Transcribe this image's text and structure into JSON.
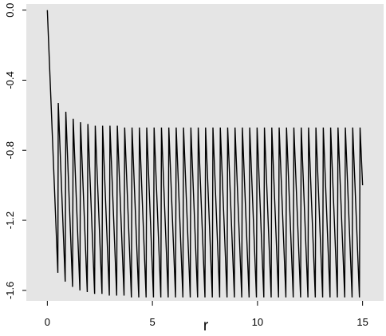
{
  "chart_data": {
    "type": "line",
    "xlabel": "r",
    "ylabel": "",
    "xlim": [
      -1.0,
      16.0
    ],
    "ylim": [
      -1.66,
      0.035
    ],
    "x_ticks": [
      0,
      5,
      10,
      15
    ],
    "x_tick_labels": [
      "0",
      "5",
      "10",
      "15"
    ],
    "y_ticks": [
      0.0,
      -0.4,
      -0.8,
      -1.2,
      -1.6
    ],
    "y_tick_labels": [
      "0.0",
      "-0.4",
      "-0.8",
      "-1.2",
      "-1.6"
    ],
    "grid": false,
    "background": "#e5e5e5",
    "line_color": "#000000",
    "series": [
      {
        "x": [
          0.0,
          0.5,
          0.52,
          0.85,
          0.88,
          1.2,
          1.23,
          1.55,
          1.58,
          1.9,
          1.93,
          2.25,
          2.28,
          2.6,
          2.63,
          2.95,
          2.98,
          3.3,
          3.33,
          3.65,
          3.68,
          4.0,
          4.03,
          4.35,
          4.38,
          4.7,
          4.73,
          5.05,
          5.08,
          5.4,
          5.43,
          5.75,
          5.78,
          6.1,
          6.13,
          6.45,
          6.48,
          6.8,
          6.83,
          7.15,
          7.18,
          7.5,
          7.53,
          7.85,
          7.88,
          8.2,
          8.23,
          8.55,
          8.58,
          8.9,
          8.93,
          9.25,
          9.28,
          9.6,
          9.63,
          9.95,
          9.98,
          10.3,
          10.33,
          10.65,
          10.68,
          11.0,
          11.03,
          11.35,
          11.38,
          11.7,
          11.73,
          12.05,
          12.08,
          12.4,
          12.43,
          12.75,
          12.78,
          13.1,
          13.13,
          13.45,
          13.48,
          13.8,
          13.83,
          14.15,
          14.18,
          14.5,
          14.53,
          14.85,
          14.88,
          15.0
        ],
        "y": [
          0.0,
          -1.5,
          -0.53,
          -1.55,
          -0.58,
          -1.58,
          -0.62,
          -1.6,
          -0.64,
          -1.61,
          -0.65,
          -1.62,
          -0.66,
          -1.62,
          -0.66,
          -1.63,
          -0.66,
          -1.63,
          -0.66,
          -1.63,
          -0.67,
          -1.64,
          -0.67,
          -1.64,
          -0.67,
          -1.64,
          -0.67,
          -1.64,
          -0.67,
          -1.64,
          -0.67,
          -1.64,
          -0.67,
          -1.64,
          -0.67,
          -1.64,
          -0.67,
          -1.64,
          -0.67,
          -1.64,
          -0.67,
          -1.64,
          -0.67,
          -1.64,
          -0.67,
          -1.64,
          -0.67,
          -1.64,
          -0.67,
          -1.64,
          -0.67,
          -1.64,
          -0.67,
          -1.64,
          -0.67,
          -1.64,
          -0.67,
          -1.64,
          -0.67,
          -1.64,
          -0.67,
          -1.64,
          -0.67,
          -1.64,
          -0.67,
          -1.64,
          -0.67,
          -1.64,
          -0.67,
          -1.64,
          -0.67,
          -1.64,
          -0.67,
          -1.64,
          -0.67,
          -1.64,
          -0.67,
          -1.64,
          -0.67,
          -1.64,
          -0.67,
          -1.64,
          -0.67,
          -1.64,
          -0.67,
          -1.0
        ]
      }
    ]
  }
}
